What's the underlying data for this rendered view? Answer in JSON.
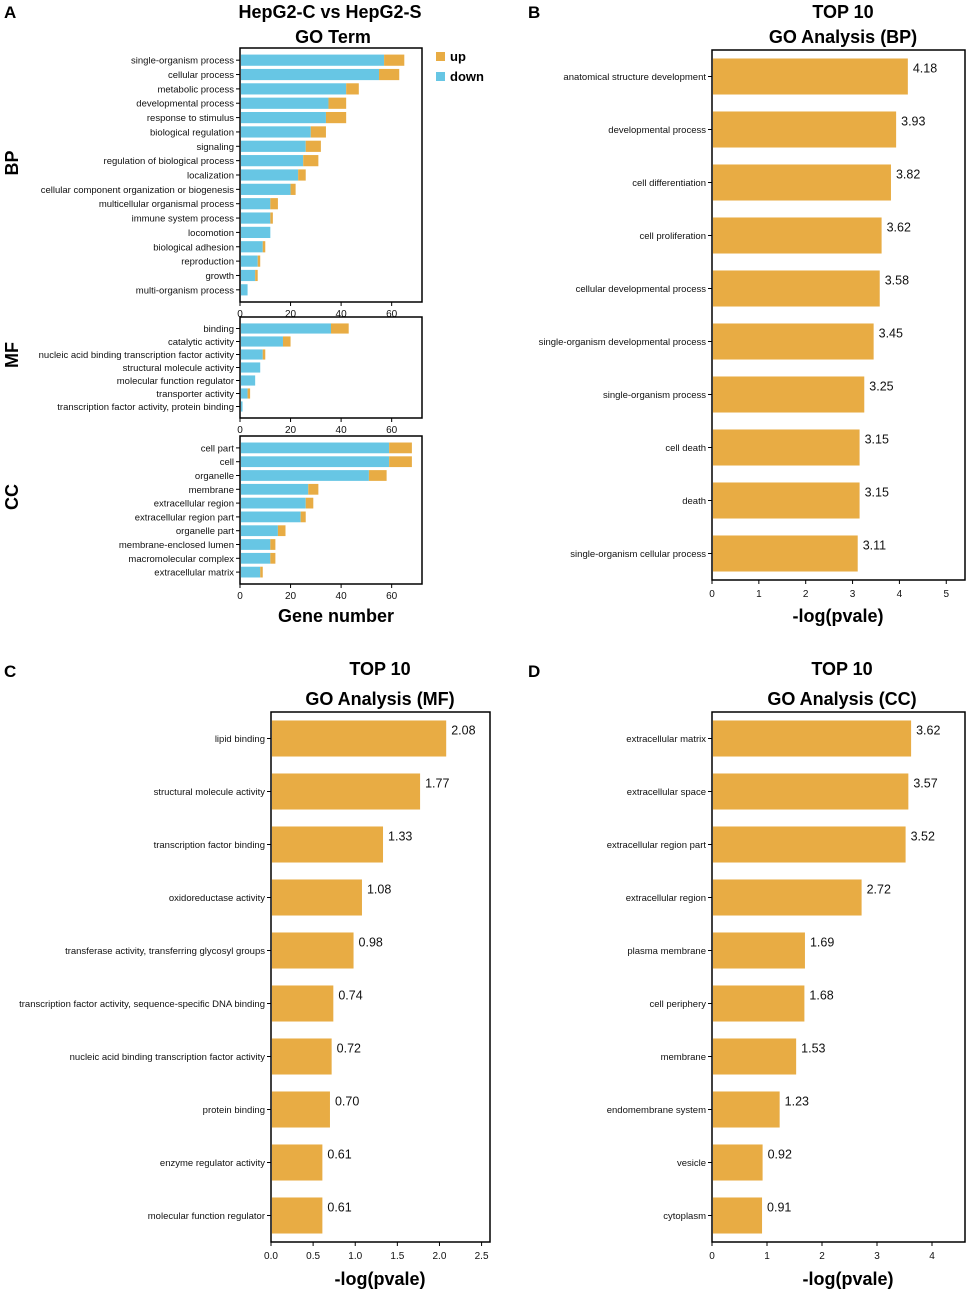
{
  "colors": {
    "up": "#e8ac44",
    "down": "#67c6e4",
    "bar": "#e8ac44",
    "axis": "#000000"
  },
  "chart_data": [
    {
      "panel": "A",
      "type": "bar",
      "orientation": "horizontal",
      "stacked": true,
      "title": [
        "HepG2-C vs HepG2-S",
        "GO Term"
      ],
      "xlabel": "Gene number",
      "xlim": [
        0,
        72
      ],
      "xticks": [
        "0",
        "20",
        "40",
        "60"
      ],
      "xtick_values": [
        0,
        20,
        40,
        60
      ],
      "legend": [
        {
          "name": "up",
          "color": "#e8ac44"
        },
        {
          "name": "down",
          "color": "#67c6e4"
        }
      ],
      "legend_position": "top-right",
      "groups": [
        {
          "name": "BP",
          "categories": [
            "single-organism process",
            "cellular process",
            "metabolic process",
            "developmental process",
            "response to stimulus",
            "biological regulation",
            "signaling",
            "regulation of biological process",
            "localization",
            "cellular component organization or biogenesis",
            "multicellular organismal process",
            "immune system process",
            "locomotion",
            "biological adhesion",
            "reproduction",
            "growth",
            "multi-organism process"
          ],
          "series": [
            {
              "name": "down",
              "values": [
                57,
                55,
                42,
                35,
                34,
                28,
                26,
                25,
                23,
                20,
                12,
                12,
                12,
                9,
                7,
                6,
                3
              ]
            },
            {
              "name": "up",
              "values": [
                8,
                8,
                5,
                7,
                8,
                6,
                6,
                6,
                3,
                2,
                3,
                1,
                0,
                1,
                1,
                1,
                0
              ]
            }
          ]
        },
        {
          "name": "MF",
          "categories": [
            "binding",
            "catalytic activity",
            "nucleic acid binding transcription factor activity",
            "structural molecule activity",
            "molecular function regulator",
            "transporter activity",
            "transcription factor activity, protein binding"
          ],
          "series": [
            {
              "name": "down",
              "values": [
                36,
                17,
                9,
                8,
                6,
                3,
                1
              ]
            },
            {
              "name": "up",
              "values": [
                7,
                3,
                1,
                0,
                0,
                1,
                0
              ]
            }
          ]
        },
        {
          "name": "CC",
          "categories": [
            "cell part",
            "cell",
            "organelle",
            "membrane",
            "extracellular region",
            "extracellular region part",
            "organelle part",
            "membrane-enclosed lumen",
            "macromolecular complex",
            "extracellular matrix"
          ],
          "series": [
            {
              "name": "down",
              "values": [
                59,
                59,
                51,
                27,
                26,
                24,
                15,
                12,
                12,
                8
              ]
            },
            {
              "name": "up",
              "values": [
                9,
                9,
                7,
                4,
                3,
                2,
                3,
                2,
                2,
                1
              ]
            }
          ]
        }
      ]
    },
    {
      "panel": "B",
      "type": "bar",
      "orientation": "horizontal",
      "title": [
        "TOP 10",
        "GO Analysis (BP)"
      ],
      "xlabel": "-log(pvale)",
      "xlim": [
        0,
        5.4
      ],
      "xticks": [
        "0",
        "1",
        "2",
        "3",
        "4",
        "5"
      ],
      "xtick_values": [
        0,
        1,
        2,
        3,
        4,
        5
      ],
      "categories": [
        "anatomical structure development",
        "developmental process",
        "cell differentiation",
        "cell proliferation",
        "cellular developmental process",
        "single-organism developmental process",
        "single-organism process",
        "cell death",
        "death",
        "single-organism cellular process"
      ],
      "values": [
        4.18,
        3.93,
        3.82,
        3.62,
        3.58,
        3.45,
        3.25,
        3.15,
        3.15,
        3.11
      ],
      "labels": [
        "4.18",
        "3.93",
        "3.82",
        "3.62",
        "3.58",
        "3.45",
        "3.25",
        "3.15",
        "3.15",
        "3.11"
      ]
    },
    {
      "panel": "C",
      "type": "bar",
      "orientation": "horizontal",
      "title": [
        "TOP 10",
        "GO Analysis (MF)"
      ],
      "xlabel": "-log(pvale)",
      "xlim": [
        0,
        2.6
      ],
      "xticks": [
        "0.0",
        "0.5",
        "1.0",
        "1.5",
        "2.0",
        "2.5"
      ],
      "xtick_values": [
        0,
        0.5,
        1.0,
        1.5,
        2.0,
        2.5
      ],
      "categories": [
        "lipid binding",
        "structural molecule activity",
        "transcription factor binding",
        "oxidoreductase activity",
        "transferase activity, transferring glycosyl groups",
        "transcription factor activity, sequence-specific DNA binding",
        "nucleic acid binding transcription factor activity",
        "protein binding",
        "enzyme regulator activity",
        "molecular function regulator"
      ],
      "values": [
        2.08,
        1.77,
        1.33,
        1.08,
        0.98,
        0.74,
        0.72,
        0.7,
        0.61,
        0.61
      ],
      "labels": [
        "2.08",
        "1.77",
        "1.33",
        "1.08",
        "0.98",
        "0.74",
        "0.72",
        "0.70",
        "0.61",
        "0.61"
      ]
    },
    {
      "panel": "D",
      "type": "bar",
      "orientation": "horizontal",
      "title": [
        "TOP 10",
        "GO Analysis (CC)"
      ],
      "xlabel": "-log(pvale)",
      "xlim": [
        0,
        4.6
      ],
      "xticks": [
        "0",
        "1",
        "2",
        "3",
        "4"
      ],
      "xtick_values": [
        0,
        1,
        2,
        3,
        4
      ],
      "categories": [
        "extracellular matrix",
        "extracellular space",
        "extracellular region part",
        "extracellular region",
        "plasma membrane",
        "cell periphery",
        "membrane",
        "endomembrane system",
        "vesicle",
        "cytoplasm"
      ],
      "values": [
        3.62,
        3.57,
        3.52,
        2.72,
        1.69,
        1.68,
        1.53,
        1.23,
        0.92,
        0.91
      ],
      "labels": [
        "3.62",
        "3.57",
        "3.52",
        "2.72",
        "1.69",
        "1.68",
        "1.53",
        "1.23",
        "0.92",
        "0.91"
      ]
    }
  ]
}
